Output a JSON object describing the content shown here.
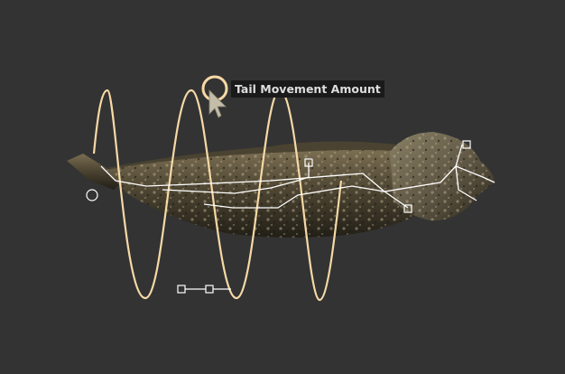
{
  "tooltip": {
    "text": "Tail Movement Amount"
  },
  "subject": {
    "name": "fish-creature"
  },
  "colors": {
    "background": "#333333",
    "wave": "#f7d9a6",
    "rig": "#ffffff",
    "tooltip_bg": "#1a1a1a",
    "tooltip_text": "#dedede",
    "cursor": "#c4bda8"
  },
  "icons": [
    "cursor-arrow-icon",
    "drag-circle-handle-icon"
  ]
}
